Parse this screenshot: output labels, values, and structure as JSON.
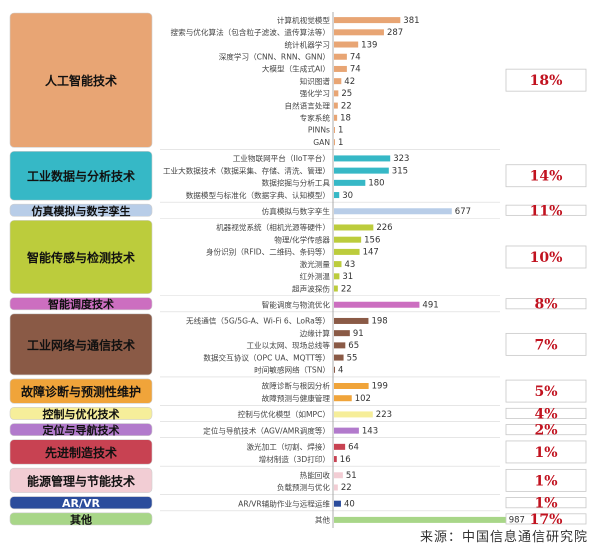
{
  "chart_data": {
    "type": "bar",
    "orientation": "horizontal",
    "title": "",
    "xlabel": "",
    "ylabel": "",
    "grid": false,
    "xlim": [
      0,
      1000
    ],
    "groups": [
      {
        "name": "人工智能技术",
        "share": "18%",
        "color": "#e8a574",
        "items": [
          {
            "label": "计算机视觉模型",
            "value": 381
          },
          {
            "label": "搜索与优化算法（包含粒子滤波、遗传算法等）",
            "value": 287
          },
          {
            "label": "统计机器学习",
            "value": 139
          },
          {
            "label": "深度学习（CNN、RNN、GNN）",
            "value": 74
          },
          {
            "label": "大模型（生成式AI）",
            "value": 74
          },
          {
            "label": "知识图谱",
            "value": 42
          },
          {
            "label": "强化学习",
            "value": 25
          },
          {
            "label": "自然语言处理",
            "value": 22
          },
          {
            "label": "专家系统",
            "value": 18
          },
          {
            "label": "PINNs",
            "value": 1
          },
          {
            "label": "GAN",
            "value": 1
          }
        ]
      },
      {
        "name": "工业数据与分析技术",
        "share": "14%",
        "color": "#36b8c6",
        "items": [
          {
            "label": "工业物联网平台（IIoT平台）",
            "value": 323
          },
          {
            "label": "工业大数据技术（数据采集、存储、清洗、管理）",
            "value": 315
          },
          {
            "label": "数据挖掘与分析工具",
            "value": 180
          },
          {
            "label": "数据模型与标准化（数据字典、认知模型）",
            "value": 30
          }
        ]
      },
      {
        "name": "仿真模拟与数字孪生",
        "share": "11%",
        "color": "#b8cde8",
        "items": [
          {
            "label": "仿真模拟与数字孪生",
            "value": 677
          }
        ]
      },
      {
        "name": "智能传感与检测技术",
        "share": "10%",
        "color": "#bccc3c",
        "items": [
          {
            "label": "机器视觉系统（相机光源等硬件）",
            "value": 226
          },
          {
            "label": "物理/化学传感器",
            "value": 156
          },
          {
            "label": "身份识别（RFID、二维码、条码等）",
            "value": 147
          },
          {
            "label": "激光测量",
            "value": 43
          },
          {
            "label": "红外测温",
            "value": 31
          },
          {
            "label": "超声波探伤",
            "value": 22
          }
        ]
      },
      {
        "name": "智能调度技术",
        "share": "8%",
        "color": "#cc6ec0",
        "items": [
          {
            "label": "智能调度与物流优化",
            "value": 491
          }
        ]
      },
      {
        "name": "工业网络与通信技术",
        "share": "7%",
        "color": "#8a5a46",
        "items": [
          {
            "label": "无线通信（5G/5G-A、Wi-Fi 6、LoRa等）",
            "value": 198
          },
          {
            "label": "边缘计算",
            "value": 91
          },
          {
            "label": "工业以太网、现场总线等",
            "value": 65
          },
          {
            "label": "数据交互协议（OPC UA、MQTT等）",
            "value": 55
          },
          {
            "label": "时间敏感网络（TSN）",
            "value": 4
          }
        ]
      },
      {
        "name": "故障诊断与预测性维护",
        "share": "5%",
        "color": "#f0a43a",
        "items": [
          {
            "label": "故障诊断与根因分析",
            "value": 199
          },
          {
            "label": "故障预测与健康管理",
            "value": 102
          }
        ]
      },
      {
        "name": "控制与优化技术",
        "share": "4%",
        "color": "#f6ee9a",
        "items": [
          {
            "label": "控制与优化模型（如MPC）",
            "value": 223
          }
        ]
      },
      {
        "name": "定位与导航技术",
        "share": "2%",
        "color": "#b27acc",
        "items": [
          {
            "label": "定位与导航技术（AGV/AMR调度等）",
            "value": 143
          }
        ]
      },
      {
        "name": "先进制造技术",
        "share": "1%",
        "color": "#c84252",
        "items": [
          {
            "label": "激光加工（切割、焊接）",
            "value": 64
          },
          {
            "label": "增材制造（3D打印）",
            "value": 16
          }
        ]
      },
      {
        "name": "能源管理与节能技术",
        "share": "1%",
        "color": "#f2cdd4",
        "items": [
          {
            "label": "热能回收",
            "value": 51
          },
          {
            "label": "负载预测与优化",
            "value": 22
          }
        ]
      },
      {
        "name": "AR/VR",
        "share": "1%",
        "color": "#2b4c9c",
        "items": [
          {
            "label": "AR/VR辅助作业与远程运维",
            "value": 40
          }
        ]
      },
      {
        "name": "其他",
        "share": "17%",
        "color": "#a8d688",
        "items": [
          {
            "label": "其他",
            "value": 987
          }
        ]
      }
    ],
    "source": "来源：中国信息通信研究院"
  }
}
